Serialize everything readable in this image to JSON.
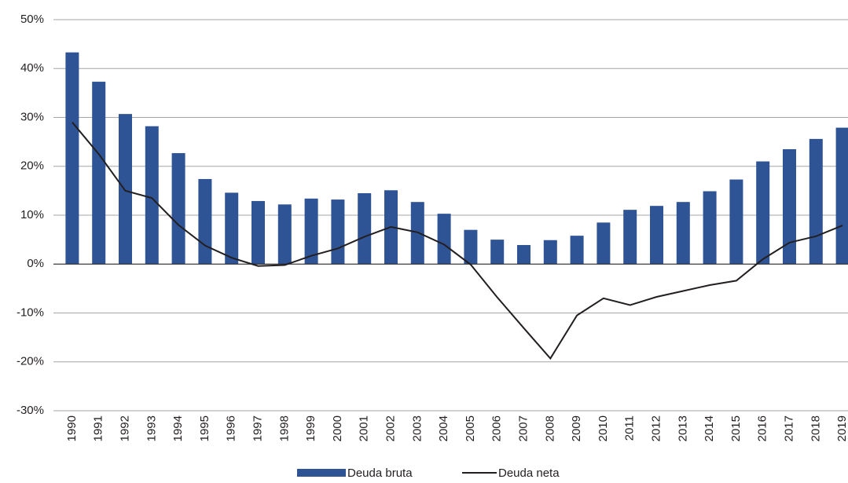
{
  "chart_data": {
    "type": "bar-line",
    "categories": [
      "1990",
      "1991",
      "1992",
      "1993",
      "1994",
      "1995",
      "1996",
      "1997",
      "1998",
      "1999",
      "2000",
      "2001",
      "2002",
      "2003",
      "2004",
      "2005",
      "2006",
      "2007",
      "2008",
      "2009",
      "2010",
      "2011",
      "2012",
      "2013",
      "2014",
      "2015",
      "2016",
      "2017",
      "2018",
      "2019"
    ],
    "series": [
      {
        "name": "Deuda bruta",
        "type": "bar",
        "color": "#2f5496",
        "values": [
          43.3,
          37.3,
          30.7,
          28.2,
          22.7,
          17.4,
          14.6,
          12.9,
          12.2,
          13.4,
          13.2,
          14.5,
          15.1,
          12.7,
          10.3,
          7.0,
          5.0,
          3.9,
          4.9,
          5.8,
          8.5,
          11.1,
          11.9,
          12.7,
          14.9,
          17.3,
          21.0,
          23.5,
          25.6,
          27.9
        ]
      },
      {
        "name": "Deuda neta",
        "type": "line",
        "color": "#231f20",
        "values": [
          29.0,
          22.5,
          15.0,
          13.5,
          8.0,
          3.8,
          1.3,
          -0.4,
          -0.2,
          1.7,
          3.2,
          5.6,
          7.6,
          6.5,
          4.0,
          -0.1,
          -6.8,
          -13.1,
          -19.3,
          -10.5,
          -7.0,
          -8.4,
          -6.7,
          -5.5,
          -4.3,
          -3.4,
          1.0,
          4.4,
          5.7,
          7.9
        ]
      }
    ],
    "ylim": [
      -30,
      50
    ],
    "yticks": [
      {
        "value": -30,
        "label": "-30%"
      },
      {
        "value": -20,
        "label": "-20%"
      },
      {
        "value": -10,
        "label": "-10%"
      },
      {
        "value": 0,
        "label": "0%"
      },
      {
        "value": 10,
        "label": "10%"
      },
      {
        "value": 20,
        "label": "20%"
      },
      {
        "value": 30,
        "label": "30%"
      },
      {
        "value": 40,
        "label": "40%"
      },
      {
        "value": 50,
        "label": "50%"
      }
    ],
    "grid": true,
    "legend": "bottom"
  }
}
